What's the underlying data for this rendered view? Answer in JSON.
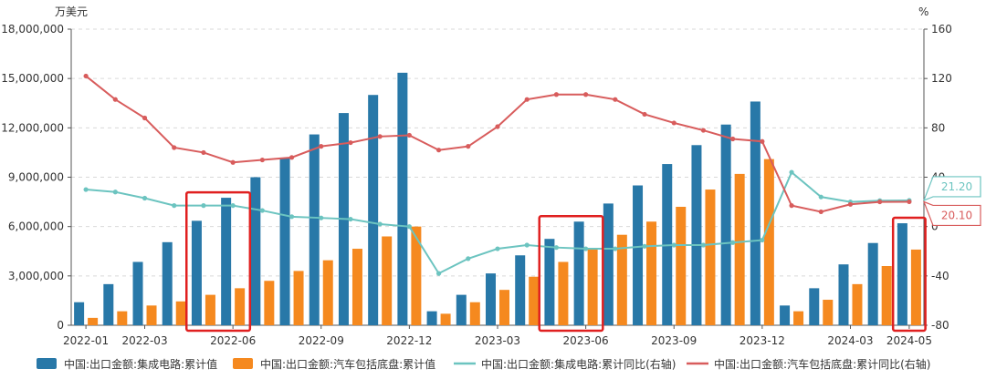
{
  "chart_data": {
    "type": "bar",
    "title": "",
    "left_unit": "万美元",
    "right_unit": "%",
    "categories": [
      "2022-01",
      "2022-02",
      "2022-03",
      "2022-04",
      "2022-05",
      "2022-06",
      "2022-07",
      "2022-08",
      "2022-09",
      "2022-10",
      "2022-11",
      "2022-12",
      "2023-01",
      "2023-02",
      "2023-03",
      "2023-04",
      "2023-05",
      "2023-06",
      "2023-07",
      "2023-08",
      "2023-09",
      "2023-10",
      "2023-11",
      "2023-12",
      "2024-01",
      "2024-02",
      "2024-03",
      "2024-04",
      "2024-05"
    ],
    "x_tick_labels": [
      "2022-01",
      "2022-03",
      "2022-06",
      "2022-09",
      "2022-12",
      "2023-03",
      "2023-06",
      "2023-09",
      "2023-12",
      "2024-03",
      "2024-05"
    ],
    "x_tick_categories": [
      "2022-01",
      "2022-03",
      "2022-06",
      "2022-09",
      "2022-12",
      "2023-03",
      "2023-06",
      "2023-09",
      "2023-12",
      "2024-03",
      "2024-05"
    ],
    "y_left": {
      "min": 0,
      "max": 18000000,
      "ticks": [
        "0",
        "3,000,000",
        "6,000,000",
        "9,000,000",
        "12,000,000",
        "15,000,000",
        "18,000,000"
      ],
      "tick_values": [
        0,
        3000000,
        6000000,
        9000000,
        12000000,
        15000000,
        18000000
      ]
    },
    "y_right": {
      "min": -80,
      "max": 160,
      "ticks": [
        "-80",
        "-40",
        "0",
        "40",
        "80",
        "120",
        "160"
      ],
      "tick_values": [
        -80,
        -40,
        0,
        40,
        80,
        120,
        160
      ]
    },
    "grid": true,
    "legend_position": "bottom",
    "series": [
      {
        "name": "中国:出口金额:集成电路:累计值",
        "kind": "bar",
        "axis": "left",
        "color": "#2878a8",
        "values": [
          1400000,
          2500000,
          3850000,
          5050000,
          6350000,
          7750000,
          9000000,
          10150000,
          11600000,
          12900000,
          14000000,
          15350000,
          850000,
          1850000,
          3150000,
          4250000,
          5250000,
          6300000,
          7400000,
          8500000,
          9800000,
          10950000,
          12200000,
          13600000,
          1200000,
          2250000,
          3700000,
          5000000,
          6200000
        ]
      },
      {
        "name": "中国:出口金额:汽车包括底盘:累计值",
        "kind": "bar",
        "axis": "left",
        "color": "#f5891f",
        "values": [
          450000,
          850000,
          1200000,
          1450000,
          1850000,
          2250000,
          2700000,
          3300000,
          3950000,
          4650000,
          5400000,
          6000000,
          700000,
          1400000,
          2150000,
          2950000,
          3850000,
          4700000,
          5500000,
          6300000,
          7200000,
          8250000,
          9200000,
          10100000,
          850000,
          1550000,
          2500000,
          3600000,
          4600000
        ]
      },
      {
        "name": "中国:出口金额:集成电路:累计同比(右轴)",
        "kind": "line",
        "axis": "right",
        "color": "#6cc4c0",
        "values": [
          30,
          28,
          23,
          17,
          17,
          17,
          13,
          8,
          7,
          6,
          2,
          0,
          -38,
          -26,
          -18,
          -15,
          -17,
          -18,
          -18,
          -16,
          -15,
          -15,
          -13,
          -11,
          44,
          24,
          20,
          21,
          21.2
        ]
      },
      {
        "name": "中国:出口金额:汽车包括底盘:累计同比(右轴)",
        "kind": "line",
        "axis": "right",
        "color": "#d85c5c",
        "values": [
          122,
          103,
          88,
          64,
          60,
          52,
          54,
          56,
          65,
          68,
          73,
          74,
          62,
          65,
          81,
          103,
          107,
          107,
          103,
          91,
          84,
          78,
          71,
          69,
          17,
          12,
          18,
          20,
          20.1
        ]
      }
    ],
    "end_labels": [
      {
        "series_index": 2,
        "text": "21.20"
      },
      {
        "series_index": 3,
        "text": "20.10"
      }
    ],
    "highlight_boxes": [
      {
        "categories": [
          "2022-05",
          "2022-06"
        ],
        "color": "#e02020"
      },
      {
        "categories": [
          "2023-05",
          "2023-06"
        ],
        "color": "#e02020"
      },
      {
        "categories": [
          "2024-05",
          "2024-05"
        ],
        "color": "#e02020"
      }
    ]
  }
}
